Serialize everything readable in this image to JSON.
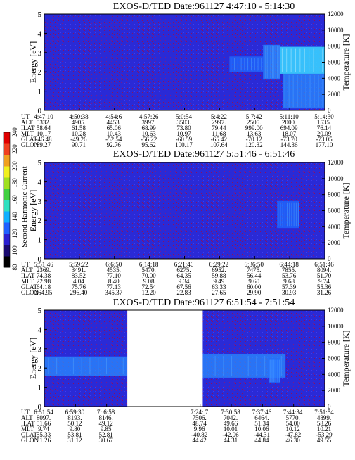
{
  "colors": {
    "background_field": "#2a2ad6",
    "grid_noise": "#8a1060",
    "signal_cyan": "#38d0ff",
    "signal_mid": "#1e6cff",
    "data_gap": "#ffffff",
    "colorbar": [
      "#000000",
      "#1a0a70",
      "#2a1fd0",
      "#2060ff",
      "#10b0ff",
      "#30e0c0",
      "#40d040",
      "#a0e020",
      "#f0f020",
      "#f0a020",
      "#f04020",
      "#e00000"
    ]
  },
  "colorbar": {
    "title": "Second Harmonic Current",
    "tick_labels": [
      "80",
      "100",
      "120",
      "140",
      "160",
      "180",
      "200",
      "220",
      "240"
    ]
  },
  "chart_data": [
    {
      "type": "heatmap",
      "title": "EXOS-D/TED   Date:961127  4:47:10 - 5:14:30",
      "ylabel": "Energy [eV]",
      "y2label": "Temperature [K]",
      "ylim": [
        0,
        5
      ],
      "y2lim": [
        0,
        12000
      ],
      "yticks": [
        "0",
        "1",
        "2",
        "3",
        "4",
        "5"
      ],
      "y2ticks": [
        "0",
        "2000",
        "4000",
        "6000",
        "8000",
        "10000",
        "12000"
      ],
      "gaps": [],
      "signal": [
        {
          "x0": 0.78,
          "x1": 0.84,
          "e0": 1.6,
          "e1": 3.4,
          "level": "mid"
        },
        {
          "x0": 0.84,
          "x1": 1.0,
          "e0": 1.9,
          "e1": 3.3,
          "level": "high"
        },
        {
          "x0": 0.85,
          "x1": 1.0,
          "e0": 0.1,
          "e1": 1.9,
          "level": "mid"
        },
        {
          "x0": 0.66,
          "x1": 0.78,
          "e0": 2.0,
          "e1": 2.8,
          "level": "low"
        }
      ],
      "table": {
        "row_labels": [
          "UT",
          "ALT",
          "ILAT",
          "MLT",
          "GLAT",
          "GLON"
        ],
        "columns": [
          [
            "4:47:10",
            "5332.",
            "58.64",
            "10.17",
            "-46.48",
            "89.27"
          ],
          [
            "4:50:38",
            "4905.",
            "61.58",
            "10.28",
            "-49.26",
            "90.71"
          ],
          [
            "4:54:6",
            "4453.",
            "65.06",
            "10.43",
            "-52.54",
            "92.76"
          ],
          [
            "4:57:26",
            "3997.",
            "68.99",
            "10.63",
            "-56.22",
            "95.62"
          ],
          [
            "5:0:54",
            "3503.",
            "73.80",
            "10.97",
            "-60.59",
            "100.17"
          ],
          [
            "5:4:22",
            "2997.",
            "79.44",
            "11.68",
            "-65.42",
            "107.64"
          ],
          [
            "5:7:42",
            "2505.",
            "999.00",
            "13.63",
            "-70.12",
            "120.32"
          ],
          [
            "5:11:10",
            "2000.",
            "694.09",
            "18.07",
            "-73.70",
            "144.36"
          ],
          [
            "5:14:30",
            "1535.",
            "76.14",
            "20.09",
            "-73.05",
            "177.10"
          ]
        ]
      }
    },
    {
      "type": "heatmap",
      "title": "EXOS-D/TED   Date:961127  5:51:46 - 6:51:46",
      "ylabel": "Energy [eV]",
      "y2label": "Temperature [K]",
      "ylim": [
        0,
        5
      ],
      "y2lim": [
        0,
        12000
      ],
      "yticks": [
        "0",
        "1",
        "2",
        "3",
        "4",
        "5"
      ],
      "y2ticks": [
        "0",
        "2000",
        "4000",
        "6000",
        "8000",
        "10000",
        "12000"
      ],
      "gaps": [],
      "signal": [
        {
          "x0": 0.83,
          "x1": 0.91,
          "e0": 1.6,
          "e1": 3.0,
          "level": "low"
        }
      ],
      "table": {
        "row_labels": [
          "UT",
          "ALT",
          "ILAT",
          "MLT",
          "GLAT",
          "GLON"
        ],
        "columns": [
          [
            "5:51:46",
            "2369.",
            "74.38",
            "22.98",
            "64.18",
            "264.95"
          ],
          [
            "5:59:22",
            "3491.",
            "83.52",
            "4.04",
            "75.76",
            "296.40"
          ],
          [
            "6:6:50",
            "4535.",
            "77.10",
            "8.40",
            "77.13",
            "345.37"
          ],
          [
            "6:14:18",
            "5470.",
            "70.00",
            "9.08",
            "72.54",
            "12.20"
          ],
          [
            "6:21:46",
            "6275.",
            "64.35",
            "9.34",
            "67.56",
            "22.83"
          ],
          [
            "6:29:22",
            "6952.",
            "59.88",
            "9.49",
            "63.33",
            "27.65"
          ],
          [
            "6:36:50",
            "7475.",
            "56.44",
            "9.60",
            "60.00",
            "29.90"
          ],
          [
            "6:44:18",
            "7855.",
            "53.76",
            "9.68",
            "57.39",
            "30.93"
          ],
          [
            "6:51:46",
            "8094.",
            "51.70",
            "9.74",
            "55.36",
            "31.26"
          ]
        ]
      }
    },
    {
      "type": "heatmap",
      "title": "EXOS-D/TED   Date:961127  6:51:54 - 7:51:54",
      "ylabel": "Energy [eV]",
      "y2label": "Temperature [K]",
      "ylim": [
        0,
        5
      ],
      "y2lim": [
        0,
        12000
      ],
      "yticks": [
        "0",
        "1",
        "2",
        "3",
        "4",
        "5"
      ],
      "y2ticks": [
        "0",
        "2000",
        "4000",
        "6000",
        "8000",
        "10000",
        "12000"
      ],
      "gaps": [
        {
          "x0": 0.296,
          "x1": 0.565
        }
      ],
      "signal": [
        {
          "x0": 0.0,
          "x1": 0.296,
          "e0": 1.6,
          "e1": 2.6,
          "level": "mid"
        },
        {
          "x0": 0.565,
          "x1": 0.86,
          "e0": 1.5,
          "e1": 2.7,
          "level": "mid"
        },
        {
          "x0": 0.8,
          "x1": 0.84,
          "e0": 1.2,
          "e1": 2.5,
          "level": "low"
        }
      ],
      "table": {
        "row_labels": [
          "UT",
          "ALT",
          "ILAT",
          "MLT",
          "GLAT",
          "GLON"
        ],
        "columns": [
          [
            "6:51:54",
            "8097.",
            "51.66",
            "9.74",
            "55.33",
            "31.26"
          ],
          [
            "6:59:30",
            "8193.",
            "50.12",
            "9.80",
            "53.81",
            "31.12"
          ],
          [
            "7: 6:58",
            "8146.",
            "49.12",
            "9.85",
            "52.81",
            "30.67"
          ],
          [
            "",
            "",
            "",
            "",
            "",
            ""
          ],
          [
            "",
            "",
            "",
            "",
            "",
            ""
          ],
          [
            "7:24: 7",
            "7506.",
            "48.74",
            "9.96",
            "-40.82",
            "44.42"
          ],
          [
            "7:30:58",
            "7042.",
            "49.66",
            "10.01",
            "-42.06",
            "44.31"
          ],
          [
            "7:37:46",
            "6464.",
            "51.34",
            "10.06",
            "-44.31",
            "44.84"
          ],
          [
            "7:44:34",
            "5770.",
            "54.00",
            "10.12",
            "-47.82",
            "46.30"
          ],
          [
            "7:51:54",
            "4899.",
            "58.26",
            "10.21",
            "-53.29",
            "49.55"
          ]
        ]
      }
    }
  ]
}
